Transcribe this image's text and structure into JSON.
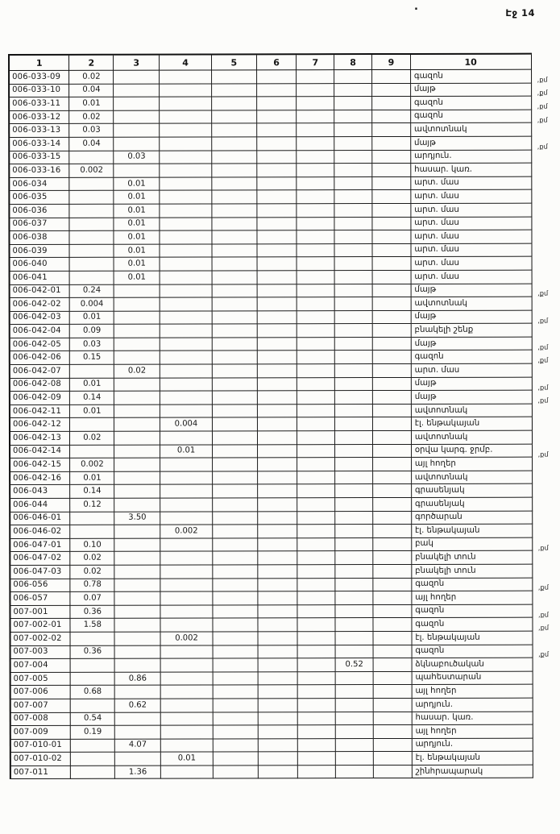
{
  "page": {
    "label": "Էջ 14"
  },
  "artifacts": {
    "stray_dot": "."
  },
  "unit_suffix": ",քմ",
  "table": {
    "headers": [
      "1",
      "2",
      "3",
      "4",
      "5",
      "6",
      "7",
      "8",
      "9",
      "10"
    ],
    "rows": [
      {
        "code": "006-033-09",
        "values": {
          "c2": "0.02"
        },
        "usage": "գազոն",
        "unit": true
      },
      {
        "code": "006-033-10",
        "values": {
          "c2": "0.04"
        },
        "usage": "մայթ",
        "unit": true
      },
      {
        "code": "006-033-11",
        "values": {
          "c2": "0.01"
        },
        "usage": "գազոն",
        "unit": true
      },
      {
        "code": "006-033-12",
        "values": {
          "c2": "0.02"
        },
        "usage": "գազոն",
        "unit": true
      },
      {
        "code": "006-033-13",
        "values": {
          "c2": "0.03"
        },
        "usage": "ավտոտնակ",
        "unit": false
      },
      {
        "code": "006-033-14",
        "values": {
          "c2": "0.04"
        },
        "usage": "մայթ",
        "unit": true
      },
      {
        "code": "006-033-15",
        "values": {
          "c3": "0.03"
        },
        "usage": "արդյուն.",
        "unit": false
      },
      {
        "code": "006-033-16",
        "values": {
          "c2": "0.002"
        },
        "usage": "հասար. կառ.",
        "unit": false
      },
      {
        "code": "006-034",
        "values": {
          "c3": "0.01"
        },
        "usage": "արտ. մաս",
        "unit": false
      },
      {
        "code": "006-035",
        "values": {
          "c3": "0.01"
        },
        "usage": "արտ. մաս",
        "unit": false
      },
      {
        "code": "006-036",
        "values": {
          "c3": "0.01"
        },
        "usage": "արտ. մաս",
        "unit": false
      },
      {
        "code": "006-037",
        "values": {
          "c3": "0.01"
        },
        "usage": "արտ. մաս",
        "unit": false
      },
      {
        "code": "006-038",
        "values": {
          "c3": "0.01"
        },
        "usage": "արտ. մաս",
        "unit": false
      },
      {
        "code": "006-039",
        "values": {
          "c3": "0.01"
        },
        "usage": "արտ. մաս",
        "unit": false
      },
      {
        "code": "006-040",
        "values": {
          "c3": "0.01"
        },
        "usage": "արտ. մաս",
        "unit": false
      },
      {
        "code": "006-041",
        "values": {
          "c3": "0.01"
        },
        "usage": "արտ. մաս",
        "unit": false
      },
      {
        "code": "006-042-01",
        "values": {
          "c2": "0.24"
        },
        "usage": "մայթ",
        "unit": true
      },
      {
        "code": "006-042-02",
        "values": {
          "c2": "0.004"
        },
        "usage": "ավտոտնակ",
        "unit": false
      },
      {
        "code": "006-042-03",
        "values": {
          "c2": "0.01"
        },
        "usage": "մայթ",
        "unit": true
      },
      {
        "code": "006-042-04",
        "values": {
          "c2": "0.09"
        },
        "usage": "բնակելի շենք",
        "unit": false
      },
      {
        "code": "006-042-05",
        "values": {
          "c2": "0.03"
        },
        "usage": "մայթ",
        "unit": true
      },
      {
        "code": "006-042-06",
        "values": {
          "c2": "0.15"
        },
        "usage": "գազոն",
        "unit": true
      },
      {
        "code": "006-042-07",
        "values": {
          "c3": "0.02"
        },
        "usage": "արտ. մաս",
        "unit": false
      },
      {
        "code": "006-042-08",
        "values": {
          "c2": "0.01"
        },
        "usage": "մայթ",
        "unit": true
      },
      {
        "code": "006-042-09",
        "values": {
          "c2": "0.14"
        },
        "usage": "մայթ",
        "unit": true
      },
      {
        "code": "006-042-11",
        "values": {
          "c2": "0.01"
        },
        "usage": "ավտոտնակ",
        "unit": false
      },
      {
        "code": "006-042-12",
        "values": {
          "c4": "0.004"
        },
        "usage": "էլ. ենթակայան",
        "unit": false
      },
      {
        "code": "006-042-13",
        "values": {
          "c2": "0.02"
        },
        "usage": "ավտոտնակ",
        "unit": false
      },
      {
        "code": "006-042-14",
        "values": {
          "c4": "0.01"
        },
        "usage": "օրվա կարգ. ջրմբ.",
        "unit": true
      },
      {
        "code": "006-042-15",
        "values": {
          "c2": "0.002"
        },
        "usage": "այլ հողեր",
        "unit": false
      },
      {
        "code": "006-042-16",
        "values": {
          "c2": "0.01"
        },
        "usage": "ավտոտնակ",
        "unit": false
      },
      {
        "code": "006-043",
        "values": {
          "c2": "0.14"
        },
        "usage": "գրասենյակ",
        "unit": false
      },
      {
        "code": "006-044",
        "values": {
          "c2": "0.12"
        },
        "usage": "գրասենյակ",
        "unit": false
      },
      {
        "code": "006-046-01",
        "values": {
          "c3": "3.50"
        },
        "usage": "գործարան",
        "unit": false
      },
      {
        "code": "006-046-02",
        "values": {
          "c4": "0.002"
        },
        "usage": "էլ. ենթակայան",
        "unit": false
      },
      {
        "code": "006-047-01",
        "values": {
          "c2": "0.10"
        },
        "usage": "բակ",
        "unit": true
      },
      {
        "code": "006-047-02",
        "values": {
          "c2": "0.02"
        },
        "usage": "բնակելի տուն",
        "unit": false
      },
      {
        "code": "006-047-03",
        "values": {
          "c2": "0.02"
        },
        "usage": "բնակելի տուն",
        "unit": false
      },
      {
        "code": "006-056",
        "values": {
          "c2": "0.78"
        },
        "usage": "գազոն",
        "unit": true
      },
      {
        "code": "006-057",
        "values": {
          "c2": "0.07"
        },
        "usage": "այլ հողեր",
        "unit": false
      },
      {
        "code": "007-001",
        "values": {
          "c2": "0.36"
        },
        "usage": "գազոն",
        "unit": true
      },
      {
        "code": "007-002-01",
        "values": {
          "c2": "1.58"
        },
        "usage": "գազոն",
        "unit": true
      },
      {
        "code": "007-002-02",
        "values": {
          "c4": "0.002"
        },
        "usage": "էլ. ենթակայան",
        "unit": false
      },
      {
        "code": "007-003",
        "values": {
          "c2": "0.36"
        },
        "usage": "գազոն",
        "unit": true
      },
      {
        "code": "007-004",
        "values": {
          "c8": "0.52"
        },
        "usage": "ձկնաբուծական",
        "unit": false
      },
      {
        "code": "007-005",
        "values": {
          "c3": "0.86"
        },
        "usage": "պահեստարան",
        "unit": false
      },
      {
        "code": "007-006",
        "values": {
          "c2": "0.68"
        },
        "usage": "այլ հողեր",
        "unit": false
      },
      {
        "code": "007-007",
        "values": {
          "c3": "0.62"
        },
        "usage": "արդյուն.",
        "unit": false
      },
      {
        "code": "007-008",
        "values": {
          "c2": "0.54"
        },
        "usage": "հասար. կառ.",
        "unit": false
      },
      {
        "code": "007-009",
        "values": {
          "c2": "0.19"
        },
        "usage": "այլ հողեր",
        "unit": false
      },
      {
        "code": "007-010-01",
        "values": {
          "c3": "4.07"
        },
        "usage": "արդյուն.",
        "unit": false
      },
      {
        "code": "007-010-02",
        "values": {
          "c4": "0.01"
        },
        "usage": "էլ. ենթակայան",
        "unit": false
      },
      {
        "code": "007-011",
        "values": {
          "c3": "1.36"
        },
        "usage": "շինհրապարակ",
        "unit": false
      }
    ]
  }
}
